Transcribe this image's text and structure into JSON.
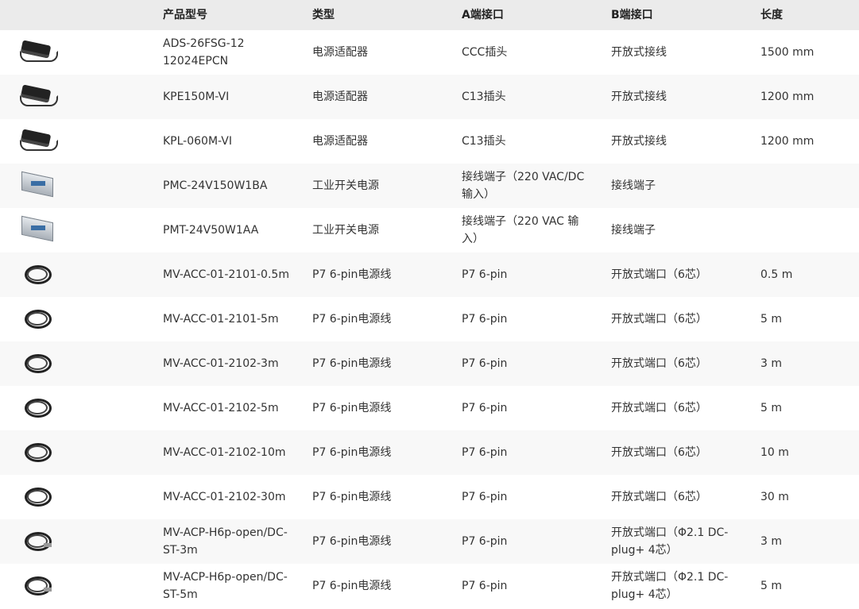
{
  "headers": [
    "",
    "产品型号",
    "类型",
    "A端接口",
    "B端接口",
    "长度"
  ],
  "rows": [
    {
      "icon": "power-adapter-icon",
      "model": "ADS-26FSG-12 12024EPCN",
      "type": "电源适配器",
      "a": "CCC插头",
      "b": "开放式接线",
      "length": "1500 mm"
    },
    {
      "icon": "power-adapter-icon",
      "model": "KPE150M-VI",
      "type": "电源适配器",
      "a": "C13插头",
      "b": "开放式接线",
      "length": "1200 mm"
    },
    {
      "icon": "power-adapter-icon",
      "model": "KPL-060M-VI",
      "type": "电源适配器",
      "a": "C13插头",
      "b": "开放式接线",
      "length": "1200 mm"
    },
    {
      "icon": "power-supply-icon",
      "model": "PMC-24V150W1BA",
      "type": "工业开关电源",
      "a": "接线端子（220 VAC/DC 输入）",
      "b": "接线端子",
      "length": ""
    },
    {
      "icon": "power-supply-icon",
      "model": "PMT-24V50W1AA",
      "type": "工业开关电源",
      "a": "接线端子（220 VAC 输入）",
      "b": "接线端子",
      "length": ""
    },
    {
      "icon": "cable-icon",
      "model": "MV-ACC-01-2101-0.5m",
      "type": "P7 6-pin电源线",
      "a": "P7 6-pin",
      "b": "开放式端口（6芯）",
      "length": "0.5 m"
    },
    {
      "icon": "cable-icon",
      "model": "MV-ACC-01-2101-5m",
      "type": "P7 6-pin电源线",
      "a": "P7 6-pin",
      "b": "开放式端口（6芯）",
      "length": "5 m"
    },
    {
      "icon": "cable-icon",
      "model": "MV-ACC-01-2102-3m",
      "type": "P7 6-pin电源线",
      "a": "P7 6-pin",
      "b": "开放式端口（6芯）",
      "length": "3 m"
    },
    {
      "icon": "cable-icon",
      "model": "MV-ACC-01-2102-5m",
      "type": "P7 6-pin电源线",
      "a": "P7 6-pin",
      "b": "开放式端口（6芯）",
      "length": "5 m"
    },
    {
      "icon": "cable-icon",
      "model": "MV-ACC-01-2102-10m",
      "type": "P7 6-pin电源线",
      "a": "P7 6-pin",
      "b": "开放式端口（6芯）",
      "length": "10 m"
    },
    {
      "icon": "cable-icon",
      "model": "MV-ACC-01-2102-30m",
      "type": "P7 6-pin电源线",
      "a": "P7 6-pin",
      "b": "开放式端口（6芯）",
      "length": "30 m"
    },
    {
      "icon": "cable-plug-icon",
      "model": "MV-ACP-H6p-open/DC-ST-3m",
      "type": "P7 6-pin电源线",
      "a": "P7 6-pin",
      "b": "开放式端口（Φ2.1 DC-plug+ 4芯）",
      "length": "3 m"
    },
    {
      "icon": "cable-plug-icon",
      "model": "MV-ACP-H6p-open/DC-ST-5m",
      "type": "P7 6-pin电源线",
      "a": "P7 6-pin",
      "b": "开放式端口（Φ2.1 DC-plug+ 4芯）",
      "length": "5 m"
    }
  ]
}
